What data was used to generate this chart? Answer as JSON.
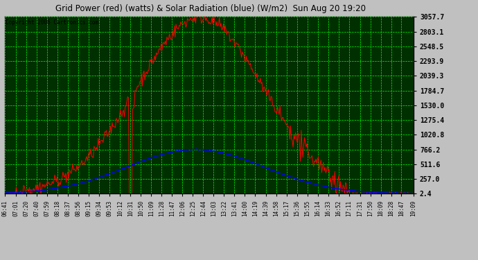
{
  "title": "Grid Power (red) (watts) & Solar Radiation (blue) (W/m2)  Sun Aug 20 19:20",
  "copyright": "Copyright 2006 Cartronics.com",
  "fig_bg_color": "#C0C0C0",
  "plot_bg_color": "#003000",
  "grid_color": "#00FF00",
  "y_ticks": [
    2.4,
    257.0,
    511.6,
    766.2,
    1020.8,
    1275.4,
    1530.0,
    1784.7,
    2039.3,
    2293.9,
    2548.5,
    2803.1,
    3057.7
  ],
  "y_min": 2.4,
  "y_max": 3057.7,
  "x_labels": [
    "06:41",
    "07:01",
    "07:20",
    "07:40",
    "07:59",
    "08:18",
    "08:37",
    "08:56",
    "09:15",
    "09:34",
    "09:53",
    "10:12",
    "10:31",
    "10:50",
    "11:09",
    "11:28",
    "11:47",
    "12:06",
    "12:25",
    "12:44",
    "13:03",
    "13:22",
    "13:41",
    "14:00",
    "14:19",
    "14:39",
    "14:58",
    "15:17",
    "15:36",
    "15:55",
    "16:14",
    "16:33",
    "16:52",
    "17:11",
    "17:31",
    "17:50",
    "18:09",
    "18:28",
    "18:47",
    "19:09"
  ],
  "red_line_color": "#FF0000",
  "blue_line_color": "#0000FF"
}
